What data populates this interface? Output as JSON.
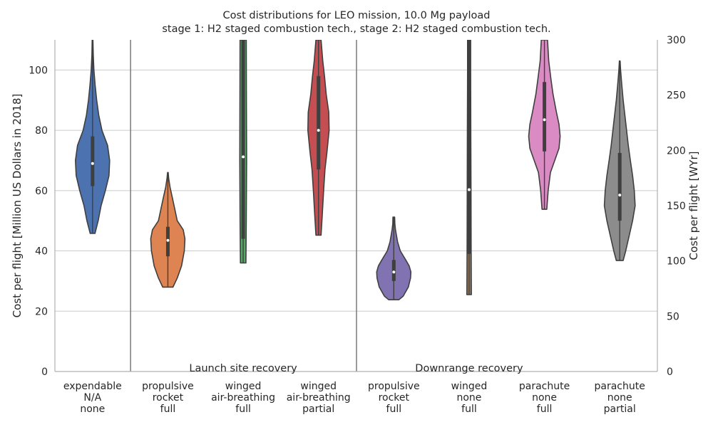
{
  "chart_data": {
    "type": "violin",
    "title_line1": "Cost distributions for LEO mission, 10.0 Mg payload",
    "title_line2": "stage 1: H2 staged combustion tech., stage 2: H2 staged combustion tech.",
    "ylabel_left": "Cost per flight [Million US Dollars in 2018]",
    "ylabel_right": "Cost per flight [WYr]",
    "ylim_left": [
      0,
      110
    ],
    "yticks_left": [
      0,
      20,
      40,
      60,
      80,
      100
    ],
    "ylim_right": [
      0,
      300
    ],
    "yticks_right": [
      0,
      50,
      100,
      150,
      200,
      250,
      300
    ],
    "grid": true,
    "group_labels": [
      "Launch site recovery",
      "Downrange recovery"
    ],
    "categories": [
      [
        "expendable",
        "N/A",
        "none"
      ],
      [
        "propulsive",
        "rocket",
        "full"
      ],
      [
        "winged",
        "air-breathing",
        "full"
      ],
      [
        "winged",
        "air-breathing",
        "partial"
      ],
      [
        "propulsive",
        "rocket",
        "full"
      ],
      [
        "winged",
        "none",
        "full"
      ],
      [
        "parachute",
        "none",
        "full"
      ],
      [
        "parachute",
        "none",
        "partial"
      ]
    ],
    "series": [
      {
        "color": "#4c72b0",
        "min": 45.8,
        "q1": 61.5,
        "median": 69.0,
        "q3": 78.0,
        "max": 110,
        "profile": [
          [
            45.8,
            0.14
          ],
          [
            50,
            0.33
          ],
          [
            55,
            0.5
          ],
          [
            60,
            0.75
          ],
          [
            65,
            0.96
          ],
          [
            70,
            1.0
          ],
          [
            75,
            0.88
          ],
          [
            80,
            0.55
          ],
          [
            85,
            0.36
          ],
          [
            90,
            0.24
          ],
          [
            95,
            0.15
          ],
          [
            100,
            0.08
          ],
          [
            105,
            0.04
          ],
          [
            110,
            0.02
          ]
        ]
      },
      {
        "color": "#dd8452",
        "min": 28.0,
        "q1": 38.2,
        "median": 43.5,
        "q3": 48.0,
        "max": 66.0,
        "profile": [
          [
            28,
            0.3
          ],
          [
            31,
            0.55
          ],
          [
            35,
            0.8
          ],
          [
            40,
            0.96
          ],
          [
            44,
            1.0
          ],
          [
            47,
            0.9
          ],
          [
            50,
            0.55
          ],
          [
            54,
            0.4
          ],
          [
            58,
            0.25
          ],
          [
            61,
            0.13
          ],
          [
            64,
            0.05
          ],
          [
            66,
            0.02
          ]
        ]
      },
      {
        "color": "#55a868",
        "min": 36.0,
        "q1": 44.0,
        "median": 71.2,
        "q3": 110,
        "max": 110,
        "profile": [
          [
            36,
            0.16
          ],
          [
            50,
            0.18
          ],
          [
            70,
            0.2
          ],
          [
            90,
            0.19
          ],
          [
            110,
            0.18
          ]
        ]
      },
      {
        "color": "#c44e52",
        "min": 45.2,
        "q1": 67.0,
        "median": 80.0,
        "q3": 98.0,
        "max": 110,
        "profile": [
          [
            45.2,
            0.15
          ],
          [
            52,
            0.22
          ],
          [
            60,
            0.3
          ],
          [
            67,
            0.38
          ],
          [
            73,
            0.5
          ],
          [
            80,
            0.62
          ],
          [
            86,
            0.6
          ],
          [
            92,
            0.45
          ],
          [
            98,
            0.35
          ],
          [
            103,
            0.25
          ],
          [
            110,
            0.15
          ]
        ]
      },
      {
        "color": "#8172b2",
        "min": 23.8,
        "q1": 30.0,
        "median": 33.0,
        "q3": 37.0,
        "max": 51.2,
        "profile": [
          [
            23.8,
            0.3
          ],
          [
            25,
            0.55
          ],
          [
            28,
            0.85
          ],
          [
            31,
            0.98
          ],
          [
            33,
            1.0
          ],
          [
            35,
            0.9
          ],
          [
            37,
            0.7
          ],
          [
            40,
            0.38
          ],
          [
            43,
            0.22
          ],
          [
            47,
            0.1
          ],
          [
            49,
            0.06
          ],
          [
            51.2,
            0.05
          ]
        ]
      },
      {
        "color": "#937860",
        "min": 25.5,
        "q1": 39.0,
        "median": 60.3,
        "q3": 110,
        "max": 110,
        "profile": [
          [
            25.5,
            0.13
          ],
          [
            40,
            0.12
          ],
          [
            60,
            0.11
          ],
          [
            80,
            0.1
          ],
          [
            100,
            0.09
          ],
          [
            110,
            0.09
          ]
        ]
      },
      {
        "color": "#da8bc3",
        "min": 53.8,
        "q1": 73.0,
        "median": 83.5,
        "q3": 96.0,
        "max": 110,
        "profile": [
          [
            53.8,
            0.14
          ],
          [
            60,
            0.22
          ],
          [
            66,
            0.35
          ],
          [
            70,
            0.6
          ],
          [
            74,
            0.85
          ],
          [
            78,
            0.92
          ],
          [
            82,
            0.85
          ],
          [
            86,
            0.7
          ],
          [
            92,
            0.5
          ],
          [
            97,
            0.38
          ],
          [
            103,
            0.25
          ],
          [
            110,
            0.18
          ]
        ]
      },
      {
        "color": "#8c8c8c",
        "min": 36.8,
        "q1": 50.0,
        "median": 58.5,
        "q3": 72.5,
        "max": 103.0,
        "profile": [
          [
            36.8,
            0.2
          ],
          [
            40,
            0.35
          ],
          [
            45,
            0.55
          ],
          [
            50,
            0.75
          ],
          [
            55,
            0.9
          ],
          [
            60,
            0.85
          ],
          [
            65,
            0.75
          ],
          [
            70,
            0.62
          ],
          [
            75,
            0.5
          ],
          [
            80,
            0.4
          ],
          [
            85,
            0.3
          ],
          [
            90,
            0.2
          ],
          [
            95,
            0.12
          ],
          [
            100,
            0.05
          ],
          [
            103,
            0.02
          ]
        ]
      }
    ]
  }
}
